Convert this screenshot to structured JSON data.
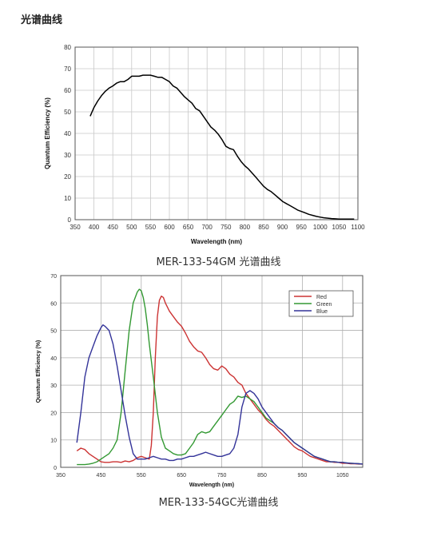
{
  "page": {
    "title": "光谱曲线"
  },
  "charts": [
    {
      "caption": "MER-133-54GM 光谱曲线"
    },
    {
      "caption": "MER-133-54GC光谱曲线"
    }
  ],
  "chart_data": [
    {
      "type": "line",
      "xlabel": "Wavelength (nm)",
      "ylabel": "Quantum Efficiency (%)",
      "xlim": [
        350,
        1100
      ],
      "ylim": [
        0,
        80
      ],
      "xticks": [
        350,
        400,
        450,
        500,
        550,
        600,
        650,
        700,
        750,
        800,
        850,
        900,
        950,
        1000,
        1050,
        1100
      ],
      "yticks": [
        0,
        10,
        20,
        30,
        40,
        50,
        60,
        70,
        80
      ],
      "grid": true,
      "series": [
        {
          "color": "#000000",
          "x": [
            390,
            400,
            410,
            420,
            430,
            440,
            450,
            460,
            470,
            480,
            490,
            500,
            510,
            520,
            530,
            540,
            550,
            560,
            570,
            580,
            590,
            600,
            610,
            620,
            630,
            640,
            650,
            660,
            670,
            680,
            690,
            700,
            710,
            720,
            730,
            740,
            750,
            760,
            770,
            780,
            790,
            800,
            810,
            820,
            830,
            840,
            850,
            860,
            870,
            880,
            890,
            900,
            910,
            920,
            930,
            940,
            950,
            960,
            970,
            980,
            990,
            1000,
            1010,
            1020,
            1030,
            1040,
            1050,
            1060,
            1070,
            1080,
            1090
          ],
          "values": [
            48,
            52,
            55,
            57.5,
            59.5,
            61,
            62,
            63.3,
            64,
            64,
            65,
            66.5,
            66.5,
            66.5,
            67,
            67,
            67,
            66.5,
            66,
            66,
            65,
            64,
            62,
            61,
            59,
            57,
            55.5,
            54,
            51.5,
            50.5,
            48,
            45.5,
            43,
            41.5,
            39.5,
            37,
            34,
            33,
            32.5,
            29.5,
            27,
            25,
            23.5,
            21.5,
            19.5,
            17.5,
            15.5,
            14,
            13,
            11.5,
            10,
            8.5,
            7.5,
            6.5,
            5.5,
            4.5,
            3.8,
            3.2,
            2.5,
            2,
            1.5,
            1.2,
            0.9,
            0.7,
            0.5,
            0.4,
            0.3,
            0.3,
            0.3,
            0.3,
            0.3
          ]
        }
      ]
    },
    {
      "type": "line",
      "xlabel": "Wavelength (nm)",
      "ylabel": "Quantum Efficiency (%)",
      "xlim": [
        350,
        1100
      ],
      "ylim": [
        0,
        70
      ],
      "xticks": [
        350,
        450,
        550,
        650,
        750,
        850,
        950,
        1050
      ],
      "yticks": [
        0,
        10,
        20,
        30,
        40,
        50,
        60,
        70
      ],
      "grid": true,
      "legend": "top-right",
      "series": [
        {
          "name": "Red",
          "color": "#cc3333",
          "x": [
            390,
            400,
            410,
            420,
            430,
            440,
            450,
            460,
            470,
            480,
            490,
            500,
            510,
            520,
            530,
            540,
            550,
            560,
            570,
            575,
            580,
            585,
            590,
            595,
            600,
            605,
            610,
            620,
            630,
            640,
            650,
            660,
            670,
            680,
            690,
            700,
            710,
            720,
            730,
            740,
            750,
            760,
            770,
            780,
            790,
            800,
            810,
            820,
            830,
            840,
            850,
            860,
            870,
            880,
            890,
            900,
            910,
            920,
            930,
            940,
            950,
            960,
            970,
            980,
            990,
            1000,
            1010,
            1020,
            1030,
            1040,
            1050,
            1060,
            1070,
            1080,
            1090,
            1100
          ],
          "values": [
            6,
            7,
            6.5,
            5,
            4,
            3,
            2,
            1.8,
            1.8,
            2,
            2,
            1.8,
            2.3,
            2,
            2.5,
            3.5,
            4,
            3.5,
            3,
            8,
            20,
            40,
            55,
            61,
            62.5,
            62,
            60,
            57,
            55,
            53,
            51.5,
            49,
            46,
            44,
            42.5,
            42,
            40,
            37.5,
            36,
            35.5,
            37,
            36,
            34,
            33,
            31,
            30,
            27,
            25,
            23,
            21,
            19.5,
            17.5,
            16,
            15,
            13.5,
            12,
            10.5,
            9,
            7.5,
            6.5,
            6,
            5,
            4,
            3.5,
            3,
            2.5,
            2,
            2,
            1.8,
            1.8,
            1.5,
            1.5,
            1.3,
            1.3,
            1.2,
            1.2
          ]
        },
        {
          "name": "Green",
          "color": "#339933",
          "x": [
            390,
            400,
            410,
            420,
            430,
            440,
            450,
            460,
            470,
            480,
            490,
            500,
            510,
            520,
            530,
            540,
            545,
            550,
            555,
            560,
            565,
            570,
            580,
            590,
            600,
            610,
            620,
            630,
            640,
            650,
            660,
            670,
            680,
            690,
            700,
            710,
            720,
            730,
            740,
            750,
            760,
            770,
            780,
            790,
            800,
            810,
            820,
            830,
            840,
            850,
            860,
            870,
            880,
            890,
            900,
            910,
            920,
            930,
            940,
            950,
            960,
            970,
            980,
            990,
            1000,
            1010,
            1020,
            1030,
            1040,
            1050,
            1060,
            1070,
            1080,
            1090,
            1100
          ],
          "values": [
            1,
            1,
            1,
            1.2,
            1.5,
            2,
            3,
            4,
            5,
            7,
            10,
            20,
            35,
            50,
            60,
            64,
            65,
            64.5,
            62,
            58,
            52,
            45,
            33,
            20,
            11,
            7,
            6,
            5,
            4.5,
            4.5,
            5,
            7,
            9,
            12,
            13,
            12.5,
            13,
            15,
            17,
            19,
            21,
            23,
            24,
            26,
            25.5,
            26,
            25,
            24,
            22,
            20,
            18,
            17,
            16,
            14.5,
            13.5,
            12,
            10.5,
            9,
            8,
            7,
            6,
            5,
            4,
            3.5,
            3,
            2.5,
            2,
            2,
            1.8,
            1.8,
            1.6,
            1.5,
            1.4,
            1.3,
            1.2
          ]
        },
        {
          "name": "Blue",
          "color": "#333399",
          "x": [
            390,
            400,
            410,
            420,
            430,
            440,
            450,
            455,
            460,
            470,
            480,
            490,
            500,
            510,
            520,
            530,
            540,
            550,
            560,
            570,
            580,
            590,
            600,
            610,
            620,
            630,
            640,
            650,
            660,
            670,
            680,
            690,
            700,
            710,
            720,
            730,
            740,
            750,
            760,
            770,
            780,
            790,
            800,
            810,
            820,
            830,
            840,
            850,
            860,
            870,
            880,
            890,
            900,
            910,
            920,
            930,
            940,
            950,
            960,
            970,
            980,
            990,
            1000,
            1010,
            1020,
            1030,
            1040,
            1050,
            1060,
            1070,
            1080,
            1090,
            1100
          ],
          "values": [
            9,
            20,
            33,
            40,
            44,
            48,
            51,
            52,
            51.5,
            50,
            45,
            37,
            28,
            19,
            11,
            5,
            3,
            3,
            3,
            3.5,
            4,
            3.5,
            3,
            3,
            2.5,
            2.5,
            3,
            3,
            3.5,
            4,
            4,
            4.5,
            5,
            5.5,
            5,
            4.5,
            4,
            4,
            4.5,
            5,
            7,
            12,
            22,
            27,
            28,
            27,
            25,
            22,
            20,
            18,
            16,
            14.5,
            13.5,
            12,
            10.5,
            9,
            8,
            7,
            6,
            5,
            4,
            3.5,
            3,
            2.5,
            2,
            2,
            1.8,
            1.8,
            1.6,
            1.5,
            1.4,
            1.3,
            1.2
          ]
        }
      ]
    }
  ]
}
